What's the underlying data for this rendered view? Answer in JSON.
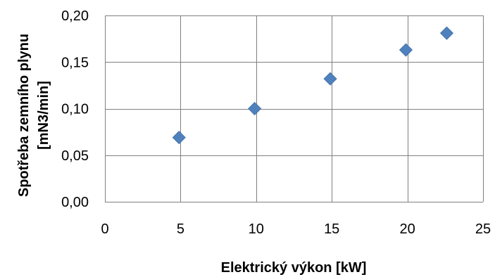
{
  "chart_data": {
    "type": "scatter",
    "title": "",
    "xlabel": "Elektrický výkon [kW]",
    "ylabel_lines": [
      "Spotřeba zemního plynu",
      "[mN3/min]"
    ],
    "xlim": [
      0,
      25
    ],
    "ylim": [
      0,
      0.2
    ],
    "x_ticks": [
      0,
      5,
      10,
      15,
      20,
      25
    ],
    "x_tick_labels": [
      "0",
      "5",
      "10",
      "15",
      "20",
      "25"
    ],
    "y_ticks": [
      0,
      0.05,
      0.1,
      0.15,
      0.2
    ],
    "y_tick_labels": [
      "0,00",
      "0,05",
      "0,10",
      "0,15",
      "0,20"
    ],
    "grid": true,
    "marker": "diamond",
    "marker_color": "#4F81BD",
    "grid_color": "#808080",
    "x": [
      4.9,
      9.9,
      14.9,
      19.9,
      22.6
    ],
    "y": [
      0.069,
      0.1,
      0.132,
      0.163,
      0.181
    ]
  }
}
